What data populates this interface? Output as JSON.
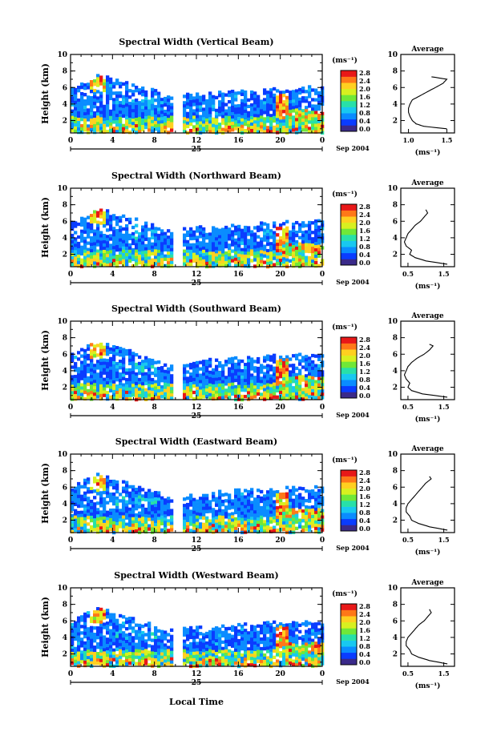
{
  "figure": {
    "x_axis_label": "Local Time",
    "date_label": "Sep 2004",
    "day_label": "25",
    "avg_title": "Average",
    "unit_label": "(ms⁻¹)",
    "colorscale_ticks": [
      "0.0",
      "0.4",
      "0.8",
      "1.2",
      "1.6",
      "2.0",
      "2.4",
      "2.8"
    ],
    "colorscale_colors": [
      "#3a2a8a",
      "#0a3cff",
      "#0a8cff",
      "#18c8f0",
      "#28e0a8",
      "#70e838",
      "#d8f020",
      "#ffd020",
      "#ff7818",
      "#e81818"
    ]
  },
  "chart_data": [
    {
      "type": "heatmap",
      "title": "Spectral Width (Vertical Beam)",
      "ylabel": "Height (km)",
      "xlabel": "Local Time",
      "x_ticks": [
        "0",
        "4",
        "8",
        "12",
        "16",
        "20",
        "0"
      ],
      "y_ticks": [
        "2",
        "4",
        "6",
        "8",
        "10"
      ],
      "ylim": [
        0.5,
        10
      ],
      "colorbar": {
        "label": "(ms⁻¹)",
        "range": [
          0.0,
          2.8
        ]
      },
      "average_profile": {
        "title": "Average",
        "xlabel": "(ms⁻¹)",
        "x_ticks": [
          "1.0",
          "1.5"
        ],
        "xlim": [
          0.9,
          1.6
        ],
        "y_ticks": [
          "2",
          "4",
          "6",
          "8",
          "10"
        ],
        "height": [
          1.0,
          1.3,
          1.6,
          2.0,
          2.5,
          3.0,
          3.5,
          4.0,
          4.5,
          5.0,
          5.5,
          6.0,
          6.5,
          7.0,
          7.3
        ],
        "value": [
          1.5,
          1.2,
          1.1,
          1.05,
          1.02,
          1.0,
          1.0,
          1.02,
          1.05,
          1.15,
          1.25,
          1.35,
          1.45,
          1.5,
          1.3
        ]
      }
    },
    {
      "type": "heatmap",
      "title": "Spectral Width (Northward Beam)",
      "ylabel": "Height (km)",
      "xlabel": "Local Time",
      "x_ticks": [
        "0",
        "4",
        "8",
        "12",
        "16",
        "20",
        "0"
      ],
      "y_ticks": [
        "2",
        "4",
        "6",
        "8",
        "10"
      ],
      "ylim": [
        0.5,
        10
      ],
      "colorbar": {
        "label": "(ms⁻¹)",
        "range": [
          0.0,
          2.8
        ]
      },
      "average_profile": {
        "title": "Average",
        "xlabel": "(ms⁻¹)",
        "x_ticks": [
          "0.5",
          "1.5"
        ],
        "xlim": [
          0.3,
          1.8
        ],
        "y_ticks": [
          "2",
          "4",
          "6",
          "8",
          "10"
        ],
        "height": [
          0.8,
          1.2,
          1.6,
          2.0,
          2.5,
          3.0,
          3.5,
          4.0,
          4.5,
          5.0,
          5.5,
          6.0,
          6.5,
          7.0,
          7.4
        ],
        "value": [
          1.6,
          1.0,
          0.7,
          0.55,
          0.6,
          0.45,
          0.4,
          0.45,
          0.5,
          0.6,
          0.7,
          0.85,
          0.95,
          1.05,
          1.0
        ]
      }
    },
    {
      "type": "heatmap",
      "title": "Spectral Width (Southward Beam)",
      "ylabel": "Height (km)",
      "xlabel": "Local Time",
      "x_ticks": [
        "0",
        "4",
        "8",
        "12",
        "16",
        "20",
        "0"
      ],
      "y_ticks": [
        "2",
        "4",
        "6",
        "8",
        "10"
      ],
      "ylim": [
        0.5,
        10
      ],
      "colorbar": {
        "label": "(ms⁻¹)",
        "range": [
          0.0,
          2.8
        ]
      },
      "average_profile": {
        "title": "Average",
        "xlabel": "(ms⁻¹)",
        "x_ticks": [
          "0.5",
          "1.5"
        ],
        "xlim": [
          0.3,
          1.8
        ],
        "y_ticks": [
          "2",
          "4",
          "6",
          "8",
          "10"
        ],
        "height": [
          0.8,
          1.2,
          1.6,
          2.0,
          2.5,
          3.0,
          3.5,
          4.0,
          4.5,
          5.0,
          5.5,
          6.0,
          6.5,
          7.0,
          7.2
        ],
        "value": [
          1.6,
          0.9,
          0.6,
          0.5,
          0.55,
          0.45,
          0.4,
          0.45,
          0.5,
          0.6,
          0.75,
          0.95,
          1.1,
          1.2,
          1.1
        ]
      }
    },
    {
      "type": "heatmap",
      "title": "Spectral Width (Eastward Beam)",
      "ylabel": "Height (km)",
      "xlabel": "Local Time",
      "x_ticks": [
        "0",
        "4",
        "8",
        "12",
        "16",
        "20",
        "0"
      ],
      "y_ticks": [
        "2",
        "4",
        "6",
        "8",
        "10"
      ],
      "ylim": [
        0.5,
        10
      ],
      "colorbar": {
        "label": "(ms⁻¹)",
        "range": [
          0.0,
          2.8
        ]
      },
      "average_profile": {
        "title": "Average",
        "xlabel": "(ms⁻¹)",
        "x_ticks": [
          "0.5",
          "1.5"
        ],
        "xlim": [
          0.3,
          1.8
        ],
        "y_ticks": [
          "2",
          "4",
          "6",
          "8",
          "10"
        ],
        "height": [
          0.8,
          1.2,
          1.6,
          2.0,
          2.5,
          3.0,
          3.5,
          4.0,
          4.5,
          5.0,
          5.5,
          6.0,
          6.5,
          7.0,
          7.3
        ],
        "value": [
          1.6,
          1.1,
          0.8,
          0.6,
          0.55,
          0.45,
          0.45,
          0.5,
          0.6,
          0.7,
          0.8,
          0.9,
          1.0,
          1.15,
          1.1
        ]
      }
    },
    {
      "type": "heatmap",
      "title": "Spectral Width (Westward Beam)",
      "ylabel": "Height (km)",
      "xlabel": "Local Time",
      "x_ticks": [
        "0",
        "4",
        "8",
        "12",
        "16",
        "20",
        "0"
      ],
      "y_ticks": [
        "2",
        "4",
        "6",
        "8",
        "10"
      ],
      "ylim": [
        0.5,
        10
      ],
      "colorbar": {
        "label": "(ms⁻¹)",
        "range": [
          0.0,
          2.8
        ]
      },
      "average_profile": {
        "title": "Average",
        "xlabel": "(ms⁻¹)",
        "x_ticks": [
          "0.5",
          "1.5"
        ],
        "xlim": [
          0.3,
          1.8
        ],
        "y_ticks": [
          "2",
          "4",
          "6",
          "8",
          "10"
        ],
        "height": [
          0.8,
          1.2,
          1.6,
          2.0,
          2.5,
          3.0,
          3.5,
          4.0,
          4.5,
          5.0,
          5.5,
          6.0,
          6.5,
          7.0,
          7.4
        ],
        "value": [
          1.6,
          1.1,
          0.8,
          0.6,
          0.55,
          0.45,
          0.45,
          0.5,
          0.6,
          0.7,
          0.8,
          0.95,
          1.05,
          1.15,
          1.1
        ]
      }
    }
  ]
}
